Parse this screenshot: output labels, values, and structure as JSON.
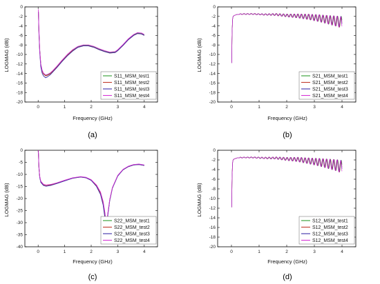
{
  "chart_data": [
    {
      "panel_label": "(a)",
      "type": "line",
      "xlabel": "Frequency (GHz)",
      "ylabel": "LOGMAG (dB)",
      "xlim": [
        -0.5,
        4.5
      ],
      "ylim": [
        -20,
        0
      ],
      "xticks": [
        0,
        1,
        2,
        3,
        4
      ],
      "yticks": [
        0,
        -2,
        -4,
        -6,
        -8,
        -10,
        -12,
        -14,
        -16,
        -18,
        -20
      ],
      "legend_position": "bottom-right",
      "series": [
        {
          "name": "S11_MSM_test1",
          "color": "#2e9a2e",
          "x": [
            0.01,
            0.03,
            0.06,
            0.1,
            0.15,
            0.2,
            0.28,
            0.35,
            0.45,
            0.55,
            0.7,
            0.9,
            1.1,
            1.3,
            1.5,
            1.7,
            1.9,
            2.1,
            2.3,
            2.5,
            2.7,
            2.9,
            3.0,
            3.2,
            3.4,
            3.6,
            3.75,
            3.9,
            4.0
          ],
          "y": [
            -1,
            -5,
            -9,
            -12,
            -13.4,
            -14,
            -14.4,
            -14.3,
            -14,
            -13.5,
            -12.6,
            -11.3,
            -10.1,
            -9.1,
            -8.4,
            -8.1,
            -8.1,
            -8.4,
            -8.9,
            -9.3,
            -9.6,
            -9.5,
            -9.1,
            -8.0,
            -6.8,
            -5.9,
            -5.5,
            -5.6,
            -5.9
          ]
        },
        {
          "name": "S11_MSM_test2",
          "color": "#c0392b",
          "x": [
            0.01,
            0.03,
            0.06,
            0.1,
            0.15,
            0.2,
            0.28,
            0.35,
            0.45,
            0.55,
            0.7,
            0.9,
            1.1,
            1.3,
            1.5,
            1.7,
            1.9,
            2.1,
            2.3,
            2.5,
            2.7,
            2.9,
            3.0,
            3.2,
            3.4,
            3.6,
            3.75,
            3.9,
            4.0
          ],
          "y": [
            -1,
            -5.2,
            -9.2,
            -12.2,
            -13.5,
            -14.1,
            -14.5,
            -14.4,
            -14.1,
            -13.6,
            -12.7,
            -11.4,
            -10.2,
            -9.2,
            -8.5,
            -8.2,
            -8.2,
            -8.5,
            -9.0,
            -9.4,
            -9.7,
            -9.6,
            -9.2,
            -8.1,
            -6.9,
            -6.0,
            -5.6,
            -5.7,
            -6.0
          ]
        },
        {
          "name": "S11_MSM_test3",
          "color": "#3b2fa8",
          "x": [
            0.01,
            0.03,
            0.06,
            0.1,
            0.15,
            0.2,
            0.28,
            0.35,
            0.45,
            0.55,
            0.7,
            0.9,
            1.1,
            1.3,
            1.5,
            1.7,
            1.9,
            2.1,
            2.3,
            2.5,
            2.7,
            2.9,
            3.0,
            3.2,
            3.4,
            3.6,
            3.75,
            3.9,
            4.0
          ],
          "y": [
            -1,
            -5.5,
            -9.6,
            -12.6,
            -13.9,
            -14.5,
            -14.9,
            -14.7,
            -14.3,
            -13.7,
            -12.8,
            -11.5,
            -10.3,
            -9.3,
            -8.5,
            -8.2,
            -8.2,
            -8.5,
            -9.0,
            -9.4,
            -9.7,
            -9.6,
            -9.2,
            -8.1,
            -6.9,
            -6.0,
            -5.6,
            -5.7,
            -6.0
          ]
        },
        {
          "name": "S11_MSM_test4",
          "color": "#d633d6",
          "x": [
            0.01,
            0.03,
            0.06,
            0.1,
            0.15,
            0.2,
            0.28,
            0.35,
            0.45,
            0.55,
            0.7,
            0.9,
            1.1,
            1.3,
            1.5,
            1.7,
            1.9,
            2.1,
            2.3,
            2.5,
            2.7,
            2.9,
            3.0,
            3.2,
            3.4,
            3.6,
            3.75,
            3.9,
            4.0
          ],
          "y": [
            -0.5,
            -4.8,
            -9.0,
            -12.0,
            -13.3,
            -13.9,
            -14.3,
            -14.2,
            -13.9,
            -13.4,
            -12.5,
            -11.2,
            -10.0,
            -9.0,
            -8.3,
            -8.0,
            -8.0,
            -8.3,
            -8.8,
            -9.2,
            -9.5,
            -9.4,
            -9.0,
            -7.9,
            -6.7,
            -5.8,
            -5.4,
            -5.5,
            -5.8
          ]
        }
      ]
    },
    {
      "panel_label": "(b)",
      "type": "line",
      "xlabel": "Frequency (GHz)",
      "ylabel": "LOGMAG (dB)",
      "xlim": [
        -0.5,
        4.5
      ],
      "ylim": [
        -20,
        0
      ],
      "xticks": [
        0,
        1,
        2,
        3,
        4
      ],
      "yticks": [
        0,
        -2,
        -4,
        -6,
        -8,
        -10,
        -12,
        -14,
        -16,
        -18,
        -20
      ],
      "legend_position": "bottom-right",
      "ripple": {
        "start": 0.3,
        "end": 4.0,
        "period": 0.13,
        "amp_start": 0.1,
        "amp_end": 1.2
      },
      "series": [
        {
          "name": "S21_MSM_test1",
          "color": "#2e9a2e",
          "x": [
            0.01,
            0.02,
            0.04,
            0.06,
            0.1,
            0.2,
            0.4,
            0.8,
            1.2,
            1.6,
            2.0,
            2.4,
            2.8,
            3.2,
            3.5,
            3.8,
            4.0
          ],
          "y": [
            -11.8,
            -6,
            -2.6,
            -2.0,
            -1.8,
            -1.6,
            -1.5,
            -1.5,
            -1.6,
            -1.6,
            -1.8,
            -1.9,
            -2.1,
            -2.4,
            -2.7,
            -3.0,
            -3.2
          ]
        },
        {
          "name": "S21_MSM_test2",
          "color": "#c0392b",
          "x": [
            0.01,
            0.02,
            0.04,
            0.06,
            0.1,
            0.2,
            0.4,
            0.8,
            1.2,
            1.6,
            2.0,
            2.4,
            2.8,
            3.2,
            3.5,
            3.8,
            4.0
          ],
          "y": [
            -11.8,
            -6,
            -2.6,
            -2.0,
            -1.8,
            -1.6,
            -1.5,
            -1.5,
            -1.6,
            -1.6,
            -1.8,
            -1.9,
            -2.1,
            -2.4,
            -2.7,
            -3.0,
            -3.3
          ]
        },
        {
          "name": "S21_MSM_test3",
          "color": "#3b2fa8",
          "x": [
            0.01,
            0.02,
            0.04,
            0.06,
            0.1,
            0.2,
            0.4,
            0.8,
            1.2,
            1.6,
            2.0,
            2.4,
            2.8,
            3.2,
            3.5,
            3.8,
            4.0
          ],
          "y": [
            -11.8,
            -6,
            -2.6,
            -2.0,
            -1.8,
            -1.6,
            -1.5,
            -1.5,
            -1.6,
            -1.6,
            -1.8,
            -1.9,
            -2.1,
            -2.4,
            -2.7,
            -3.0,
            -3.2
          ]
        },
        {
          "name": "S21_MSM_test4",
          "color": "#d633d6",
          "x": [
            0.01,
            0.02,
            0.04,
            0.06,
            0.1,
            0.2,
            0.4,
            0.8,
            1.2,
            1.6,
            2.0,
            2.4,
            2.8,
            3.2,
            3.5,
            3.8,
            4.0
          ],
          "y": [
            -11.8,
            -6,
            -2.6,
            -2.0,
            -1.8,
            -1.6,
            -1.5,
            -1.5,
            -1.6,
            -1.6,
            -1.8,
            -1.9,
            -2.1,
            -2.4,
            -2.7,
            -3.0,
            -3.3
          ]
        }
      ]
    },
    {
      "panel_label": "(c)",
      "type": "line",
      "xlabel": "Frequency (GHz)",
      "ylabel": "LOGMAG (dB)",
      "xlim": [
        -0.5,
        4.5
      ],
      "ylim": [
        -40,
        0
      ],
      "xticks": [
        0,
        1,
        2,
        3,
        4
      ],
      "yticks": [
        0,
        -5,
        -10,
        -15,
        -20,
        -25,
        -30,
        -35,
        -40
      ],
      "legend_position": "bottom-right",
      "series": [
        {
          "name": "S22_MSM_test1",
          "color": "#2e9a2e",
          "x": [
            0.01,
            0.03,
            0.06,
            0.1,
            0.2,
            0.3,
            0.5,
            0.7,
            1.0,
            1.3,
            1.6,
            1.8,
            2.0,
            2.2,
            2.35,
            2.45,
            2.52,
            2.56,
            2.6,
            2.65,
            2.7,
            2.8,
            3.0,
            3.2,
            3.4,
            3.6,
            3.8,
            4.0
          ],
          "y": [
            -1,
            -7,
            -11,
            -13,
            -14.2,
            -14.5,
            -14.2,
            -13.6,
            -12.5,
            -11.5,
            -11.0,
            -11.3,
            -12.3,
            -14.5,
            -17.5,
            -21.5,
            -26.5,
            -30.5,
            -28.5,
            -24.5,
            -20.5,
            -15.5,
            -10.5,
            -8.0,
            -6.7,
            -6.0,
            -5.8,
            -6.2
          ]
        },
        {
          "name": "S22_MSM_test2",
          "color": "#c0392b",
          "x": [
            0.01,
            0.03,
            0.06,
            0.1,
            0.2,
            0.3,
            0.5,
            0.7,
            1.0,
            1.3,
            1.6,
            1.8,
            2.0,
            2.2,
            2.35,
            2.45,
            2.52,
            2.56,
            2.6,
            2.65,
            2.7,
            2.8,
            3.0,
            3.2,
            3.4,
            3.6,
            3.8,
            4.0
          ],
          "y": [
            -1,
            -7,
            -11,
            -13,
            -14.3,
            -14.6,
            -14.3,
            -13.7,
            -12.6,
            -11.6,
            -11.1,
            -11.4,
            -12.4,
            -14.7,
            -17.8,
            -22.0,
            -27.5,
            -31.0,
            -28.8,
            -24.7,
            -20.6,
            -15.6,
            -10.6,
            -8.1,
            -6.8,
            -6.1,
            -5.9,
            -6.3
          ]
        },
        {
          "name": "S22_MSM_test3",
          "color": "#3b2fa8",
          "x": [
            0.01,
            0.03,
            0.06,
            0.1,
            0.2,
            0.3,
            0.5,
            0.7,
            1.0,
            1.3,
            1.6,
            1.8,
            2.0,
            2.2,
            2.35,
            2.45,
            2.52,
            2.56,
            2.6,
            2.65,
            2.7,
            2.8,
            3.0,
            3.2,
            3.4,
            3.6,
            3.8,
            4.0
          ],
          "y": [
            -1,
            -7.2,
            -11.3,
            -13.3,
            -14.6,
            -14.9,
            -14.5,
            -13.8,
            -12.7,
            -11.6,
            -11.1,
            -11.4,
            -12.5,
            -15.0,
            -18.3,
            -22.7,
            -28.3,
            -31.5,
            -29.2,
            -25.0,
            -20.8,
            -15.7,
            -10.7,
            -8.1,
            -6.8,
            -6.1,
            -5.9,
            -6.3
          ]
        },
        {
          "name": "S22_MSM_test4",
          "color": "#d633d6",
          "x": [
            0.01,
            0.03,
            0.06,
            0.1,
            0.2,
            0.3,
            0.5,
            0.7,
            1.0,
            1.3,
            1.6,
            1.8,
            2.0,
            2.2,
            2.35,
            2.45,
            2.52,
            2.56,
            2.6,
            2.65,
            2.7,
            2.8,
            3.0,
            3.2,
            3.4,
            3.6,
            3.8,
            4.0
          ],
          "y": [
            0,
            -6.8,
            -10.8,
            -12.8,
            -14.1,
            -14.4,
            -14.1,
            -13.5,
            -12.4,
            -11.4,
            -10.9,
            -11.2,
            -12.2,
            -14.4,
            -17.3,
            -21.2,
            -26.0,
            -30.0,
            -28.2,
            -24.2,
            -20.3,
            -15.4,
            -10.4,
            -7.9,
            -6.6,
            -5.9,
            -5.7,
            -6.1
          ]
        }
      ]
    },
    {
      "panel_label": "(d)",
      "type": "line",
      "xlabel": "Frequency (GHz)",
      "ylabel": "LOGMAG (dB)",
      "xlim": [
        -0.5,
        4.5
      ],
      "ylim": [
        -20,
        0
      ],
      "xticks": [
        0,
        1,
        2,
        3,
        4
      ],
      "yticks": [
        0,
        -2,
        -4,
        -6,
        -8,
        -10,
        -12,
        -14,
        -16,
        -18,
        -20
      ],
      "legend_position": "bottom-right",
      "ripple": {
        "start": 0.3,
        "end": 4.0,
        "period": 0.13,
        "amp_start": 0.1,
        "amp_end": 1.3
      },
      "series": [
        {
          "name": "S12_MSM_test1",
          "color": "#2e9a2e",
          "x": [
            0.01,
            0.02,
            0.04,
            0.06,
            0.1,
            0.2,
            0.4,
            0.8,
            1.2,
            1.6,
            2.0,
            2.4,
            2.8,
            3.2,
            3.5,
            3.8,
            4.0
          ],
          "y": [
            -11.8,
            -6,
            -2.6,
            -2.0,
            -1.8,
            -1.6,
            -1.5,
            -1.5,
            -1.6,
            -1.6,
            -1.8,
            -1.9,
            -2.2,
            -2.5,
            -2.8,
            -3.1,
            -3.4
          ]
        },
        {
          "name": "S12_MSM_test2",
          "color": "#c0392b",
          "x": [
            0.01,
            0.02,
            0.04,
            0.06,
            0.1,
            0.2,
            0.4,
            0.8,
            1.2,
            1.6,
            2.0,
            2.4,
            2.8,
            3.2,
            3.5,
            3.8,
            4.0
          ],
          "y": [
            -11.8,
            -6,
            -2.6,
            -2.0,
            -1.8,
            -1.6,
            -1.5,
            -1.5,
            -1.6,
            -1.6,
            -1.8,
            -1.9,
            -2.2,
            -2.5,
            -2.8,
            -3.1,
            -3.5
          ]
        },
        {
          "name": "S12_MSM_test3",
          "color": "#3b2fa8",
          "x": [
            0.01,
            0.02,
            0.04,
            0.06,
            0.1,
            0.2,
            0.4,
            0.8,
            1.2,
            1.6,
            2.0,
            2.4,
            2.8,
            3.2,
            3.5,
            3.8,
            4.0
          ],
          "y": [
            -11.8,
            -6,
            -2.6,
            -2.0,
            -1.8,
            -1.6,
            -1.5,
            -1.5,
            -1.6,
            -1.6,
            -1.8,
            -1.9,
            -2.2,
            -2.5,
            -2.8,
            -3.1,
            -3.4
          ]
        },
        {
          "name": "S12_MSM_test4",
          "color": "#d633d6",
          "x": [
            0.01,
            0.02,
            0.04,
            0.06,
            0.1,
            0.2,
            0.4,
            0.8,
            1.2,
            1.6,
            2.0,
            2.4,
            2.8,
            3.2,
            3.5,
            3.8,
            4.0
          ],
          "y": [
            -11.8,
            -6,
            -2.6,
            -2.0,
            -1.8,
            -1.6,
            -1.5,
            -1.5,
            -1.6,
            -1.6,
            -1.8,
            -1.9,
            -2.2,
            -2.5,
            -2.8,
            -3.1,
            -3.5
          ]
        }
      ]
    }
  ]
}
